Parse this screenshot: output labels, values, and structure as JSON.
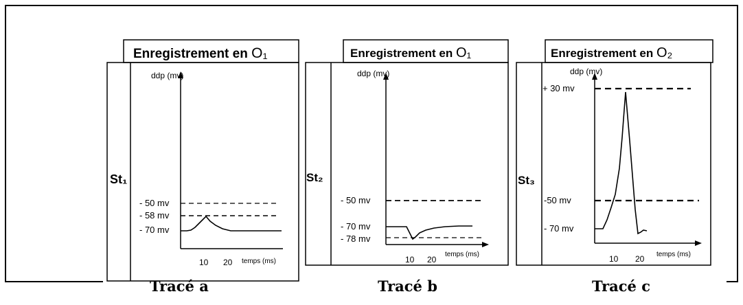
{
  "panels": [
    {
      "stimulus": "St₁",
      "title_prefix": "Enregistrement en ",
      "title_electrode": "O₁",
      "y_label": "ddp (mv)",
      "x_label": "temps (ms)",
      "x_ticks": [
        "10",
        "20"
      ],
      "levels": [
        "- 50 mv",
        "- 58 mv",
        "- 70 mv"
      ],
      "caption": "Tracé a"
    },
    {
      "stimulus": "St₂",
      "title_prefix": "Enregistrement en ",
      "title_electrode": "O₁",
      "y_label": "ddp (mv)",
      "x_label": "temps (ms)",
      "x_ticks": [
        "10",
        "20"
      ],
      "levels": [
        "- 50 mv",
        "- 70 mv",
        "- 78 mv"
      ],
      "caption": "Tracé b"
    },
    {
      "stimulus": "St₃",
      "title_prefix": "Enregistrement en ",
      "title_electrode": "O₂",
      "y_label": "ddp (mv)",
      "x_label": "temps (ms)",
      "x_ticks": [
        "10",
        "20"
      ],
      "levels": [
        "+ 30 mv",
        "-50 mv",
        "- 70 mv"
      ],
      "caption": "Tracé c"
    }
  ]
}
